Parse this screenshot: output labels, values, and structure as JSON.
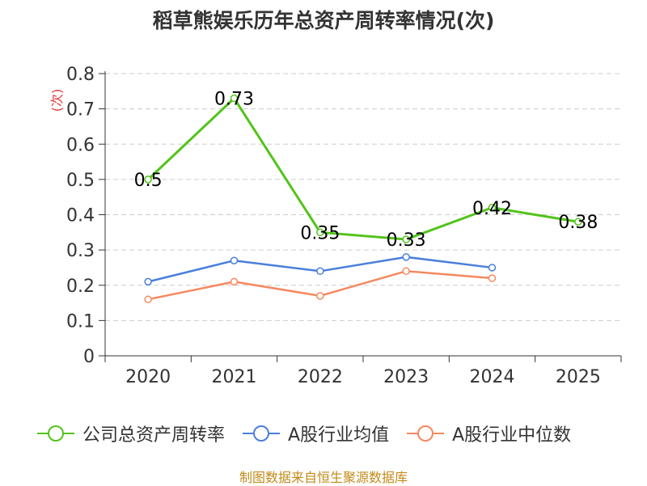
{
  "title": "稻草熊娱乐历年总资产周转率情况(次)",
  "source": "制图数据来自恒生聚源数据库",
  "chart_data": {
    "type": "line",
    "title": "稻草熊娱乐历年总资产周转率情况(次)",
    "ylabel": "(次)",
    "xlabel": "",
    "categories": [
      "2020",
      "2021",
      "2022",
      "2023",
      "2024",
      "2025"
    ],
    "ylim": [
      0,
      0.8
    ],
    "yticks": [
      "0",
      "0.1",
      "0.2",
      "0.3",
      "0.4",
      "0.5",
      "0.6",
      "0.7",
      "0.8"
    ],
    "grid": true,
    "legend_position": "bottom",
    "series": [
      {
        "name": "公司总资产周转率",
        "color": "#52c41a",
        "values": [
          0.5,
          0.73,
          0.35,
          0.33,
          0.42,
          0.38
        ],
        "labels": [
          "0.5",
          "0.73",
          "0.35",
          "0.33",
          "0.42",
          "0.38"
        ]
      },
      {
        "name": "A股行业均值",
        "color": "#4a7fdc",
        "values": [
          0.21,
          0.27,
          0.24,
          0.28,
          0.25,
          null
        ]
      },
      {
        "name": "A股行业中位数",
        "color": "#f5895f",
        "values": [
          0.16,
          0.21,
          0.17,
          0.24,
          0.22,
          null
        ]
      }
    ]
  }
}
